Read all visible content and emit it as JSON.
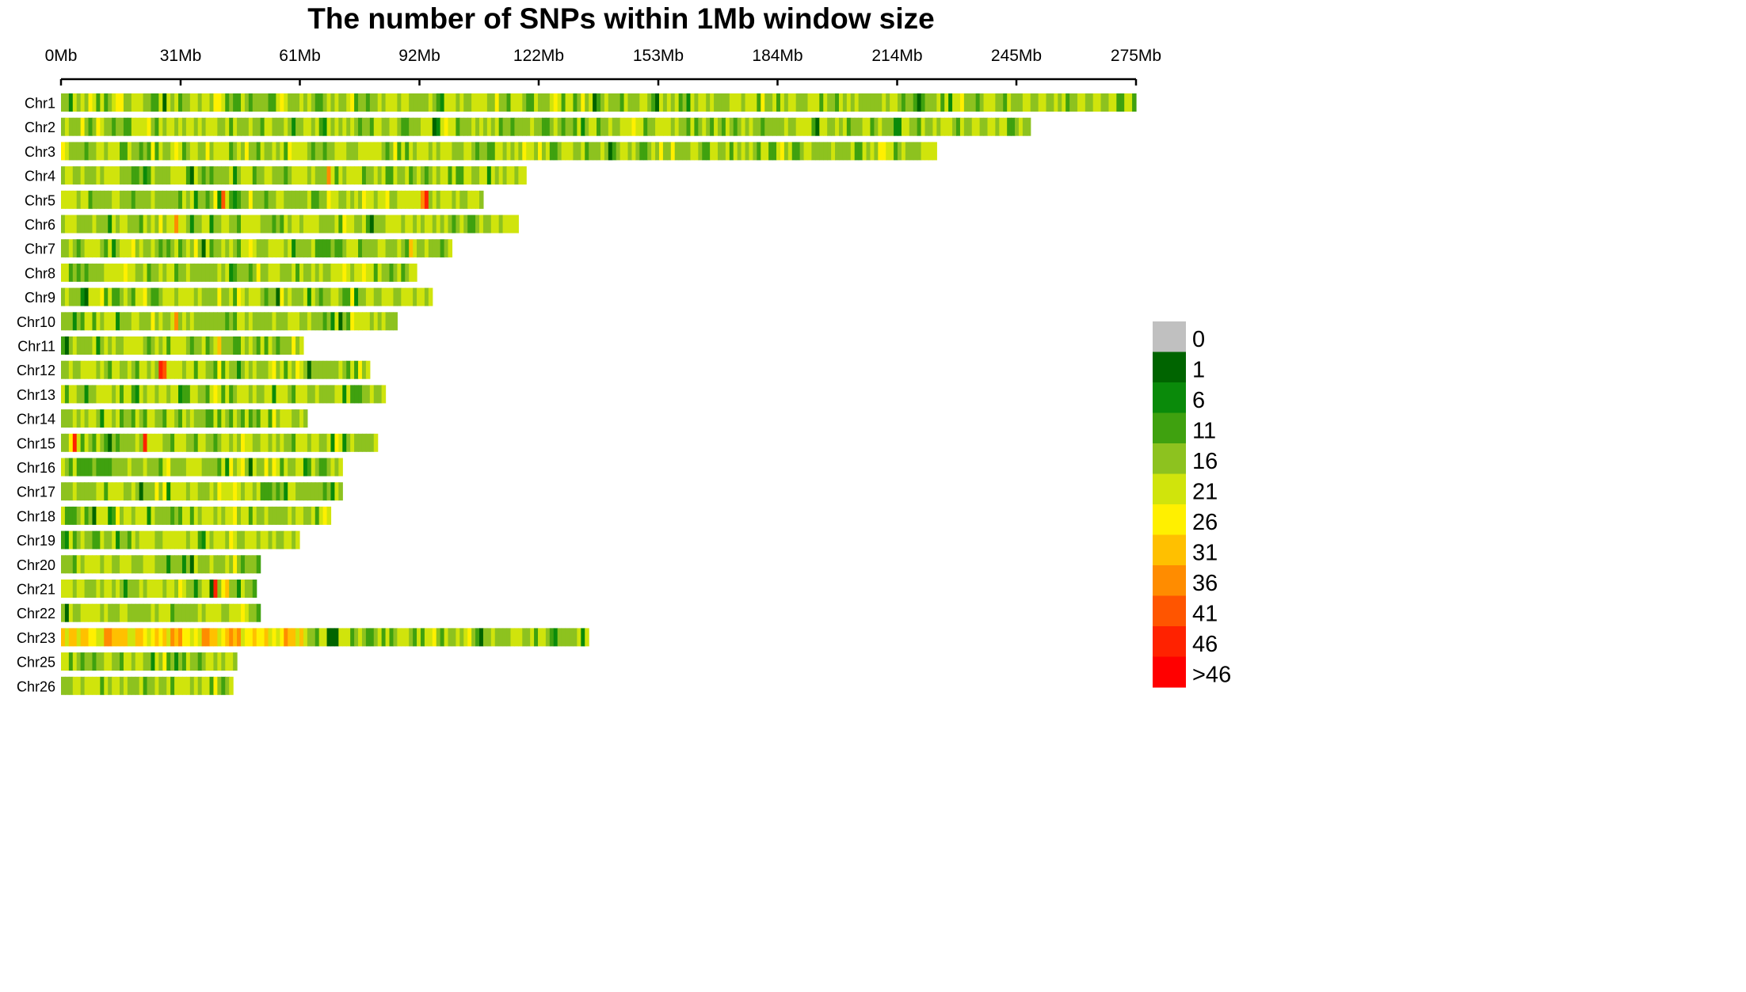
{
  "chart_data": {
    "type": "heatmap",
    "title": "The number of SNPs within 1Mb window size",
    "xlabel": "",
    "ylabel": "",
    "x_unit": "Mb",
    "xlim": [
      0,
      275
    ],
    "x_ticks": [
      {
        "value": 0,
        "label": "0Mb"
      },
      {
        "value": 30.6,
        "label": "31Mb"
      },
      {
        "value": 61.1,
        "label": "61Mb"
      },
      {
        "value": 91.7,
        "label": "92Mb"
      },
      {
        "value": 122.2,
        "label": "122Mb"
      },
      {
        "value": 152.8,
        "label": "153Mb"
      },
      {
        "value": 183.3,
        "label": "184Mb"
      },
      {
        "value": 213.9,
        "label": "214Mb"
      },
      {
        "value": 244.4,
        "label": "245Mb"
      },
      {
        "value": 275,
        "label": "275Mb"
      }
    ],
    "chromosomes": [
      {
        "name": "Chr1",
        "length": 275,
        "hotspots": [
          [
            26,
            2
          ],
          [
            136,
            2
          ],
          [
            152,
            1
          ],
          [
            219,
            1
          ]
        ]
      },
      {
        "name": "Chr2",
        "length": 248,
        "hotspots": [
          [
            95,
            1
          ],
          [
            193,
            1
          ]
        ]
      },
      {
        "name": "Chr3",
        "length": 224,
        "hotspots": [
          [
            140,
            1
          ]
        ]
      },
      {
        "name": "Chr4",
        "length": 119,
        "hotspots": [
          [
            68,
            36
          ],
          [
            33,
            1
          ]
        ]
      },
      {
        "name": "Chr5",
        "length": 108,
        "hotspots": [
          [
            41,
            41
          ],
          [
            68,
            26
          ],
          [
            93,
            46
          ],
          [
            92,
            36
          ]
        ]
      },
      {
        "name": "Chr6",
        "length": 117,
        "hotspots": [
          [
            25,
            26
          ],
          [
            29,
            36
          ],
          [
            79,
            1
          ]
        ]
      },
      {
        "name": "Chr7",
        "length": 100,
        "hotspots": [
          [
            34,
            26
          ],
          [
            89,
            31
          ],
          [
            36,
            1
          ]
        ]
      },
      {
        "name": "Chr8",
        "length": 91,
        "hotspots": [
          [
            50,
            26
          ]
        ]
      },
      {
        "name": "Chr9",
        "length": 95,
        "hotspots": [
          [
            6,
            1
          ],
          [
            55,
            1
          ]
        ]
      },
      {
        "name": "Chr10",
        "length": 86,
        "hotspots": [
          [
            29,
            36
          ],
          [
            71,
            1
          ]
        ]
      },
      {
        "name": "Chr11",
        "length": 62,
        "hotspots": [
          [
            1,
            1
          ],
          [
            40,
            31
          ]
        ]
      },
      {
        "name": "Chr12",
        "length": 79,
        "hotspots": [
          [
            25,
            46
          ],
          [
            26,
            41
          ],
          [
            63,
            1
          ]
        ]
      },
      {
        "name": "Chr13",
        "length": 83,
        "hotspots": []
      },
      {
        "name": "Chr14",
        "length": 63,
        "hotspots": [
          [
            54,
            26
          ]
        ]
      },
      {
        "name": "Chr15",
        "length": 81,
        "hotspots": [
          [
            3,
            46
          ],
          [
            21,
            46
          ],
          [
            12,
            1
          ]
        ]
      },
      {
        "name": "Chr16",
        "length": 72,
        "hotspots": [
          [
            48,
            1
          ]
        ]
      },
      {
        "name": "Chr17",
        "length": 72,
        "hotspots": [
          [
            20,
            1
          ]
        ]
      },
      {
        "name": "Chr18",
        "length": 69,
        "hotspots": [
          [
            8,
            1
          ]
        ]
      },
      {
        "name": "Chr19",
        "length": 61,
        "hotspots": []
      },
      {
        "name": "Chr20",
        "length": 51,
        "hotspots": [
          [
            33,
            1
          ]
        ]
      },
      {
        "name": "Chr21",
        "length": 50,
        "hotspots": [
          [
            38,
            1
          ],
          [
            39,
            46
          ],
          [
            42,
            31
          ]
        ]
      },
      {
        "name": "Chr22",
        "length": 51,
        "hotspots": [
          [
            1,
            1
          ]
        ]
      },
      {
        "name": "Chr23",
        "length": 135,
        "hotspots": [
          [
            68,
            1
          ],
          [
            69,
            1
          ],
          [
            70,
            1
          ],
          [
            107,
            1
          ]
        ]
      },
      {
        "name": "Chr25",
        "length": 45,
        "hotspots": []
      },
      {
        "name": "Chr26",
        "length": 44,
        "hotspots": []
      }
    ],
    "special_regions": [
      {
        "chromosome": "Chr23",
        "start": 0,
        "end": 62,
        "class_range": [
          21,
          36
        ],
        "note": "high-density region"
      }
    ],
    "legend": {
      "placement": "right",
      "entries": [
        {
          "label": "0",
          "color": "#c0c0c0"
        },
        {
          "label": "1",
          "color": "#006400"
        },
        {
          "label": "6",
          "color": "#0a8a0a"
        },
        {
          "label": "11",
          "color": "#3fa10f"
        },
        {
          "label": "16",
          "color": "#8dc21f"
        },
        {
          "label": "21",
          "color": "#d0e40c"
        },
        {
          "label": "26",
          "color": "#fff000"
        },
        {
          "label": "31",
          "color": "#ffc000"
        },
        {
          "label": "36",
          "color": "#ff8c00"
        },
        {
          "label": "41",
          "color": "#ff5500"
        },
        {
          "label": "46",
          "color": "#ff2200"
        },
        {
          "label": ">46",
          "color": "#ff0000"
        }
      ]
    }
  }
}
